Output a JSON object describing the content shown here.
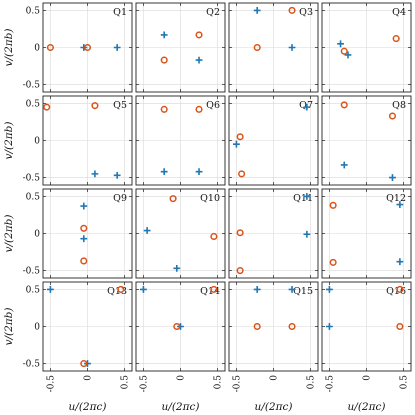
{
  "colors": {
    "plus": "#1f77b4",
    "circle": "#d95319",
    "grid": "#d9d9d9",
    "frame": "#222222"
  },
  "chart_data": {
    "type": "scatter",
    "layout": "grid-4x4",
    "xlabel": "u/(2πc)",
    "ylabel": "v/(2πb)",
    "xlim": [
      -0.6,
      0.6
    ],
    "ylim": [
      -0.6,
      0.6
    ],
    "xticks": [
      -0.5,
      0,
      0.5
    ],
    "yticks": [
      -0.5,
      0,
      0.5
    ],
    "xtick_labels": [
      "-0.5",
      "0",
      "0.5"
    ],
    "ytick_labels": [
      "-0.5",
      "0",
      "0.5"
    ],
    "grid": true,
    "markers": {
      "plus": "plus",
      "circle": "circle"
    },
    "panels": [
      {
        "label": "Q1",
        "plus": [
          [
            -0.05,
            0.0
          ],
          [
            0.4,
            0.0
          ]
        ],
        "circle": [
          [
            -0.5,
            0.0
          ],
          [
            0.0,
            0.0
          ]
        ]
      },
      {
        "label": "Q2",
        "plus": [
          [
            -0.22,
            0.17
          ],
          [
            0.25,
            -0.17
          ]
        ],
        "circle": [
          [
            -0.22,
            -0.17
          ],
          [
            0.25,
            0.17
          ]
        ]
      },
      {
        "label": "Q3",
        "plus": [
          [
            -0.22,
            0.5
          ],
          [
            0.25,
            0.0
          ]
        ],
        "circle": [
          [
            -0.22,
            0.0
          ],
          [
            0.25,
            0.5
          ]
        ]
      },
      {
        "label": "Q4",
        "plus": [
          [
            -0.35,
            0.05
          ],
          [
            -0.25,
            -0.1
          ]
        ],
        "circle": [
          [
            -0.3,
            -0.05
          ],
          [
            0.4,
            0.12
          ]
        ]
      },
      {
        "label": "Q5",
        "plus": [
          [
            0.1,
            -0.45
          ],
          [
            0.4,
            -0.47
          ]
        ],
        "circle": [
          [
            -0.55,
            0.45
          ],
          [
            0.1,
            0.47
          ]
        ]
      },
      {
        "label": "Q6",
        "plus": [
          [
            -0.22,
            -0.42
          ],
          [
            0.25,
            -0.42
          ]
        ],
        "circle": [
          [
            -0.22,
            0.42
          ],
          [
            0.25,
            0.42
          ]
        ]
      },
      {
        "label": "Q7",
        "plus": [
          [
            -0.5,
            -0.05
          ],
          [
            0.45,
            0.45
          ]
        ],
        "circle": [
          [
            -0.45,
            0.05
          ],
          [
            -0.43,
            -0.45
          ]
        ]
      },
      {
        "label": "Q8",
        "plus": [
          [
            -0.3,
            -0.33
          ],
          [
            0.35,
            -0.5
          ]
        ],
        "circle": [
          [
            -0.3,
            0.48
          ],
          [
            0.35,
            0.33
          ]
        ]
      },
      {
        "label": "Q9",
        "plus": [
          [
            -0.05,
            0.37
          ],
          [
            -0.05,
            -0.07
          ]
        ],
        "circle": [
          [
            -0.05,
            0.07
          ],
          [
            -0.05,
            -0.37
          ]
        ]
      },
      {
        "label": "Q10",
        "plus": [
          [
            -0.45,
            0.04
          ],
          [
            -0.05,
            -0.47
          ]
        ],
        "circle": [
          [
            -0.1,
            0.47
          ],
          [
            0.45,
            -0.04
          ]
        ]
      },
      {
        "label": "Q11",
        "plus": [
          [
            0.45,
            0.5
          ],
          [
            0.45,
            -0.01
          ]
        ],
        "circle": [
          [
            -0.45,
            0.01
          ],
          [
            -0.45,
            -0.5
          ]
        ]
      },
      {
        "label": "Q12",
        "plus": [
          [
            0.45,
            0.39
          ],
          [
            0.45,
            -0.38
          ]
        ],
        "circle": [
          [
            -0.45,
            0.38
          ],
          [
            -0.45,
            -0.39
          ]
        ]
      },
      {
        "label": "Q13",
        "plus": [
          [
            -0.5,
            0.5
          ],
          [
            0.0,
            -0.5
          ]
        ],
        "circle": [
          [
            -0.05,
            -0.5
          ],
          [
            0.45,
            0.5
          ]
        ]
      },
      {
        "label": "Q14",
        "plus": [
          [
            -0.5,
            0.5
          ],
          [
            0.0,
            0.0
          ]
        ],
        "circle": [
          [
            -0.05,
            0.0
          ],
          [
            0.45,
            0.5
          ]
        ]
      },
      {
        "label": "Q15",
        "plus": [
          [
            -0.22,
            0.5
          ],
          [
            0.25,
            0.5
          ]
        ],
        "circle": [
          [
            -0.22,
            0.0
          ],
          [
            0.25,
            0.0
          ]
        ]
      },
      {
        "label": "Q16",
        "plus": [
          [
            -0.5,
            0.5
          ],
          [
            -0.5,
            0.0
          ]
        ],
        "circle": [
          [
            0.45,
            0.5
          ],
          [
            0.45,
            0.0
          ]
        ]
      }
    ]
  }
}
